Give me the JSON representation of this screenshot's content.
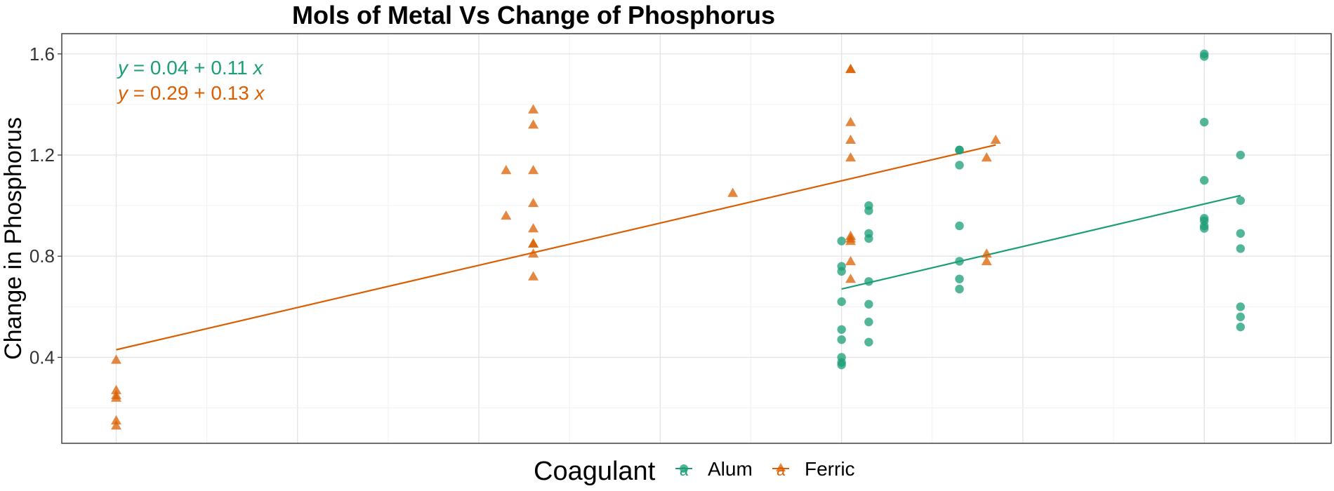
{
  "chart_data": {
    "type": "scatter",
    "title": "Mols of Metal Vs Change of Phosphorus",
    "xlabel": "",
    "ylabel": "Change in Phosphorus",
    "ylim": [
      0.06,
      1.68
    ],
    "xlim": [
      -0.3,
      6.7
    ],
    "y_ticks": [
      "0.4",
      "0.8",
      "1.2",
      "1.6"
    ],
    "y_tick_values": [
      0.4,
      0.8,
      1.2,
      1.6
    ],
    "grid": true,
    "legend_position": "bottom",
    "legend": {
      "title": "Coagulant",
      "key_glyph": "a",
      "entries": [
        {
          "label": "Alum",
          "color": "#1b9e77",
          "shape": "circle"
        },
        {
          "label": "Ferric",
          "color": "#d95f02",
          "shape": "triangle"
        }
      ]
    },
    "equations": [
      {
        "series": "Alum",
        "parts": {
          "y": "y",
          "body": " = 0.04 + 0.11 ",
          "x": "x"
        },
        "color": "#1b9e77"
      },
      {
        "series": "Ferric",
        "parts": {
          "y": "y",
          "body": " = 0.29 + 0.13 ",
          "x": "x"
        },
        "color": "#d95f02"
      }
    ],
    "series": [
      {
        "name": "Alum",
        "color": "#1b9e77",
        "shape": "circle",
        "trend": {
          "x": [
            4.0,
            6.2
          ],
          "y": [
            0.67,
            1.04
          ]
        },
        "points": [
          [
            4.0,
            0.86
          ],
          [
            4.0,
            0.76
          ],
          [
            4.0,
            0.74
          ],
          [
            4.0,
            0.62
          ],
          [
            4.0,
            0.51
          ],
          [
            4.0,
            0.47
          ],
          [
            4.0,
            0.4
          ],
          [
            4.0,
            0.38
          ],
          [
            4.0,
            0.37
          ],
          [
            4.15,
            1.0
          ],
          [
            4.15,
            0.98
          ],
          [
            4.15,
            0.89
          ],
          [
            4.15,
            0.87
          ],
          [
            4.15,
            0.7
          ],
          [
            4.15,
            0.61
          ],
          [
            4.15,
            0.54
          ],
          [
            4.15,
            0.46
          ],
          [
            4.65,
            1.22
          ],
          [
            4.65,
            1.22
          ],
          [
            4.65,
            1.16
          ],
          [
            4.65,
            0.92
          ],
          [
            4.65,
            0.78
          ],
          [
            4.65,
            0.71
          ],
          [
            4.65,
            0.67
          ],
          [
            6.0,
            1.6
          ],
          [
            6.0,
            1.59
          ],
          [
            6.0,
            1.33
          ],
          [
            6.0,
            1.1
          ],
          [
            6.0,
            0.95
          ],
          [
            6.0,
            0.94
          ],
          [
            6.0,
            0.92
          ],
          [
            6.0,
            0.91
          ],
          [
            6.2,
            1.2
          ],
          [
            6.2,
            1.02
          ],
          [
            6.2,
            0.89
          ],
          [
            6.2,
            0.83
          ],
          [
            6.2,
            0.6
          ],
          [
            6.2,
            0.56
          ],
          [
            6.2,
            0.52
          ]
        ]
      },
      {
        "name": "Ferric",
        "color": "#d95f02",
        "shape": "triangle",
        "trend": {
          "x": [
            0.0,
            4.85
          ],
          "y": [
            0.43,
            1.24
          ]
        },
        "points": [
          [
            0.0,
            0.39
          ],
          [
            0.0,
            0.27
          ],
          [
            0.0,
            0.25
          ],
          [
            0.0,
            0.24
          ],
          [
            0.0,
            0.15
          ],
          [
            0.0,
            0.13
          ],
          [
            2.15,
            1.14
          ],
          [
            2.15,
            0.96
          ],
          [
            2.3,
            1.38
          ],
          [
            2.3,
            1.32
          ],
          [
            2.3,
            1.14
          ],
          [
            2.3,
            1.01
          ],
          [
            2.3,
            0.91
          ],
          [
            2.3,
            0.85
          ],
          [
            2.3,
            0.85
          ],
          [
            2.3,
            0.81
          ],
          [
            2.3,
            0.72
          ],
          [
            3.4,
            1.05
          ],
          [
            4.05,
            1.54
          ],
          [
            4.05,
            1.54
          ],
          [
            4.05,
            1.33
          ],
          [
            4.05,
            1.26
          ],
          [
            4.05,
            1.19
          ],
          [
            4.05,
            0.88
          ],
          [
            4.05,
            0.87
          ],
          [
            4.05,
            0.86
          ],
          [
            4.05,
            0.78
          ],
          [
            4.05,
            0.71
          ],
          [
            4.8,
            1.19
          ],
          [
            4.8,
            0.81
          ],
          [
            4.8,
            0.78
          ],
          [
            4.85,
            1.26
          ]
        ]
      }
    ]
  }
}
